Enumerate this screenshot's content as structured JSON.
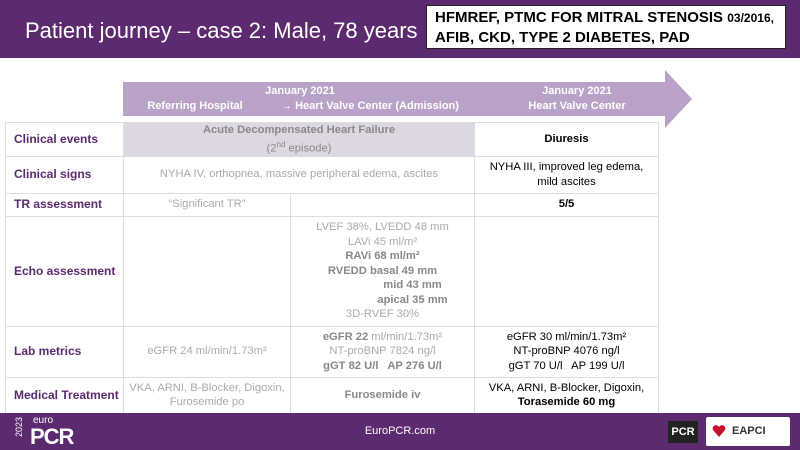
{
  "header": {
    "title": "Patient journey – case 2: Male, 78 years",
    "box_line1": "HFMREF, PTMC FOR MITRAL STENOSIS",
    "box_date": "03/2016,",
    "box_line2": "AFIB, CKD, TYPE 2 DIABETES, PAD"
  },
  "timeline": {
    "date1": "January 2021",
    "from": "Referring Hospital",
    "to": "→ Heart Valve Center (Admission)",
    "date2": "January 2021",
    "place2": "Heart Valve Center"
  },
  "table": {
    "rows": [
      {
        "label": "Clinical events",
        "c23": [
          "Acute Decompensated Heart Failure",
          [
            "(2",
            "nd",
            " episode)"
          ]
        ],
        "c4": [
          "Diuresis"
        ]
      },
      {
        "label": "Clinical signs",
        "c23": [
          "NYHA IV, orthopnea, massive peripheral edema, ascites"
        ],
        "c4": [
          "NYHA III, improved leg edema,",
          "mild ascites"
        ]
      },
      {
        "label": "TR assessment",
        "c2": [
          "“Significant TR”"
        ],
        "c4": [
          "5/5"
        ]
      },
      {
        "label": "Echo assessment",
        "c3": [
          "LVEF 38%, LVEDD 48 mm",
          "LAVi 45 ml/m²",
          "RAVi 68 ml/m²",
          "RVEDD basal 49 mm",
          "mid 43 mm",
          "apical 35 mm",
          "3D-RVEF 30%"
        ]
      },
      {
        "label": "Lab metrics",
        "c2": [
          "eGFR 24 ml/min/1.73m²"
        ],
        "c3": [
          [
            "eGFR 22",
            " ml/min/1.73m²"
          ],
          "NT-proBNP 7824 ng/l",
          "gGT 82 U/l   AP 276 U/l"
        ],
        "c4": [
          "eGFR 30 ml/min/1.73m²",
          "NT-proBNP 4076 ng/l",
          "gGT 70 U/l   AP 199 U/l"
        ]
      },
      {
        "label": "Medical Treatment",
        "c2": [
          "VKA, ARNI, B-Blocker, Digoxin,",
          "Furosemide po"
        ],
        "c3": [
          "Furosemide iv"
        ],
        "c4": [
          "VKA, ARNI, B-Blocker, Digoxin,",
          "Torasemide 60 mg"
        ]
      }
    ]
  },
  "footer": {
    "year": "2023",
    "euro": "euro",
    "pcr": "PCR",
    "site": "EuroPCR.com",
    "logo": "PCR",
    "eapci": "EAPCI"
  }
}
